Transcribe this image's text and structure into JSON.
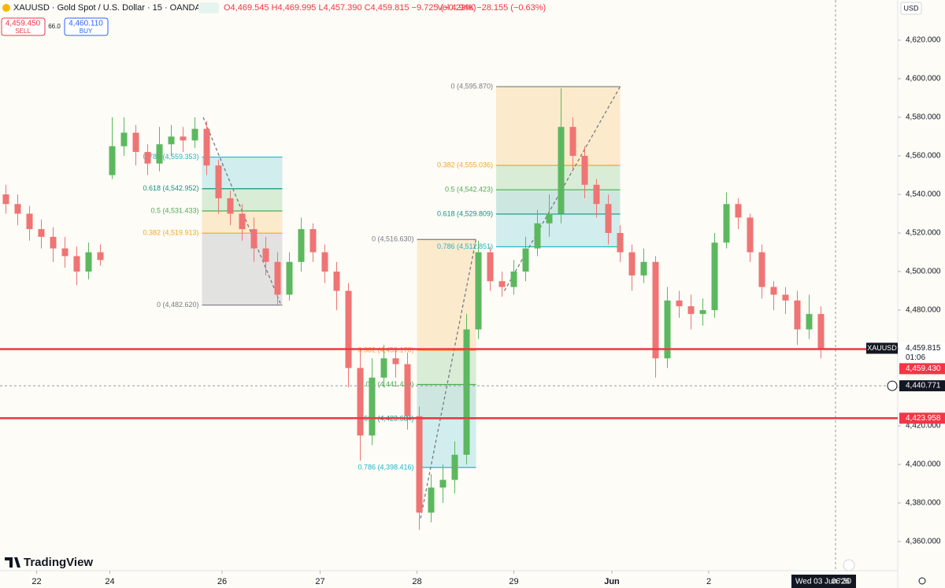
{
  "header": {
    "title": "XAUUSD · Gold Spot / U.S. Dollar · 15 · OANDA",
    "ohlc": "O4,469.545 H4,469.995 L4,457.390 C4,459.815 −9.725 (−0.22%)",
    "volume": "Vol 4.94K −28.155 (−0.63%)",
    "sell_price": "4,459.450",
    "sell": "SELL",
    "spread": "66.0",
    "buy_price": "4,460.110",
    "buy": "BUY",
    "currency": "USD"
  },
  "chart_data": {
    "type": "candlestick",
    "open": [
      4540,
      4535,
      4530,
      4522,
      4518,
      4512,
      4508,
      4500,
      4510,
      4550,
      4565,
      4572,
      4562,
      4556,
      4566,
      4570,
      4568,
      4574,
      4555,
      4538,
      4530,
      4522,
      4512,
      4505,
      4488,
      4505,
      4522,
      4510,
      4500,
      4490,
      4450,
      4415,
      4445,
      4455,
      4452,
      4425,
      4375,
      4388,
      4392,
      4405,
      4470,
      4510,
      4495,
      4492,
      4500,
      4512,
      4525,
      4530,
      4575,
      4560,
      4545,
      4535,
      4520,
      4510,
      4498,
      4505,
      4455,
      4485,
      4482,
      4478,
      4480,
      4515,
      4535,
      4528,
      4510,
      4492,
      4488,
      4485,
      4470,
      4478
    ],
    "high": [
      4545,
      4540,
      4534,
      4527,
      4523,
      4518,
      4513,
      4515,
      4514,
      4580,
      4580,
      4576,
      4566,
      4575,
      4576,
      4575,
      4580,
      4578,
      4558,
      4542,
      4535,
      4528,
      4518,
      4510,
      4510,
      4528,
      4525,
      4514,
      4505,
      4494,
      4460,
      4455,
      4462,
      4460,
      4458,
      4430,
      4395,
      4400,
      4412,
      4478,
      4516,
      4513,
      4500,
      4506,
      4518,
      4532,
      4540,
      4595,
      4580,
      4565,
      4548,
      4540,
      4524,
      4514,
      4512,
      4508,
      4492,
      4490,
      4488,
      4486,
      4520,
      4541,
      4538,
      4530,
      4514,
      4495,
      4492,
      4490,
      4488,
      4482
    ],
    "low": [
      4530,
      4524,
      4516,
      4512,
      4505,
      4502,
      4493,
      4496,
      4503,
      4548,
      4560,
      4555,
      4550,
      4552,
      4560,
      4562,
      4564,
      4550,
      4530,
      4524,
      4516,
      4505,
      4498,
      4483,
      4485,
      4500,
      4505,
      4494,
      4480,
      4440,
      4402,
      4410,
      4440,
      4445,
      4418,
      4366,
      4370,
      4380,
      4385,
      4400,
      4465,
      4490,
      4487,
      4488,
      4495,
      4508,
      4518,
      4525,
      4552,
      4538,
      4528,
      4514,
      4505,
      4490,
      4494,
      4445,
      4450,
      4476,
      4470,
      4472,
      4476,
      4512,
      4522,
      4505,
      4486,
      4480,
      4478,
      4462,
      4465,
      4455
    ],
    "close": [
      4535,
      4530,
      4522,
      4518,
      4512,
      4508,
      4500,
      4510,
      4506,
      4565,
      4572,
      4562,
      4556,
      4566,
      4570,
      4568,
      4574,
      4555,
      4538,
      4530,
      4522,
      4512,
      4505,
      4488,
      4505,
      4522,
      4510,
      4500,
      4490,
      4450,
      4415,
      4445,
      4455,
      4452,
      4425,
      4375,
      4388,
      4392,
      4405,
      4470,
      4510,
      4495,
      4492,
      4500,
      4512,
      4525,
      4530,
      4575,
      4560,
      4545,
      4535,
      4520,
      4510,
      4498,
      4505,
      4455,
      4485,
      4482,
      4478,
      4480,
      4515,
      4535,
      4528,
      4510,
      4492,
      4488,
      4485,
      4470,
      4478,
      4460
    ],
    "up_color": "#5cb85f",
    "down_color": "#ef7474",
    "xlim": [
      0,
      76
    ],
    "xticks": [
      {
        "value": 3.1,
        "label": "22"
      },
      {
        "value": 9.3,
        "label": "24"
      },
      {
        "value": 18.8,
        "label": "26"
      },
      {
        "value": 27.1,
        "label": "27"
      },
      {
        "value": 35.3,
        "label": "28"
      },
      {
        "value": 43.5,
        "label": "29"
      },
      {
        "value": 51.8,
        "label": "Jun"
      },
      {
        "value": 60,
        "label": "2"
      }
    ],
    "ylim": [
      4344.9,
      4640.8
    ],
    "yticks": [
      {
        "value": 4360,
        "label": "4,360.000"
      },
      {
        "value": 4380,
        "label": "4,380.000"
      },
      {
        "value": 4400,
        "label": "4,400.000"
      },
      {
        "value": 4420,
        "label": "4,420.000"
      },
      {
        "value": 4440,
        "label": "4,440.000"
      },
      {
        "value": 4460,
        "label": "4,460.000"
      },
      {
        "value": 4480,
        "label": "4,480.000"
      },
      {
        "value": 4500,
        "label": "4,500.000"
      },
      {
        "value": 4520,
        "label": "4,520.000"
      },
      {
        "value": 4540,
        "label": "4,540.000"
      },
      {
        "value": 4560,
        "label": "4,560.000"
      },
      {
        "value": 4580,
        "label": "4,580.000"
      },
      {
        "value": 4600,
        "label": "4,600.000"
      },
      {
        "value": 4620,
        "label": "4,620.000"
      }
    ],
    "fib_retracements": [
      {
        "start": 17.1,
        "end": 23.9,
        "trend_from": [
          17.2,
          4580
        ],
        "trend_to": [
          23.8,
          4482.6
        ],
        "levels": [
          {
            "value": 4559.353,
            "label": "0.786 (4,559.353)",
            "color": "#22b5c9"
          },
          {
            "value": 4542.952,
            "label": "0.618 (4,542.952)",
            "color": "#0f9485"
          },
          {
            "value": 4531.433,
            "label": "0.5 (4,531.433)",
            "color": "#4caf50"
          },
          {
            "value": 4519.913,
            "label": "0.382 (4,519.913)",
            "color": "#f5a623"
          },
          {
            "value": 4482.62,
            "label": "0 (4,482.620)",
            "color": "#787b86"
          }
        ]
      },
      {
        "start": 35.3,
        "end": 40.3,
        "trend_from": [
          35.6,
          4372
        ],
        "trend_to": [
          40.3,
          4516.63
        ],
        "levels": [
          {
            "value": 4516.63,
            "label": "0 (4,516.630)",
            "color": "#787b86"
          },
          {
            "value": 4459.178,
            "label": "0.382 (4,459.178)",
            "color": "#f5a623"
          },
          {
            "value": 4441.43,
            "label": "0.5 (4,441.430)",
            "color": "#4caf50"
          },
          {
            "value": 4423.684,
            "label": "0.618 (4,423.684)",
            "color": "#0f9485"
          },
          {
            "value": 4398.416,
            "label": "0.786 (4,398.416)",
            "color": "#22b5c9"
          }
        ]
      },
      {
        "start": 42,
        "end": 52.5,
        "trend_from": [
          42.7,
          4490
        ],
        "trend_to": [
          52.5,
          4595.87
        ],
        "levels": [
          {
            "value": 4595.87,
            "label": "0 (4,595.870)",
            "color": "#787b86"
          },
          {
            "value": 4555.036,
            "label": "0.382 (4,555.036)",
            "color": "#f5a623"
          },
          {
            "value": 4542.423,
            "label": "0.5 (4,542.423)",
            "color": "#4caf50"
          },
          {
            "value": 4529.809,
            "label": "0.618 (4,529.809)",
            "color": "#0f9485"
          },
          {
            "value": 4512.851,
            "label": "0.786 (4,512.851)",
            "color": "#22b5c9"
          }
        ]
      }
    ],
    "last_price": {
      "symbol": "XAUUSD",
      "value": 4459.815,
      "label": "4,459.815",
      "countdown": "01:06",
      "color": "#f23645"
    },
    "bid": {
      "value": 4459.43,
      "label": "4,459.430"
    },
    "cursor_line": {
      "value": 4440.771,
      "label": "4,440.771"
    },
    "horizontal_line": {
      "value": 4423.958,
      "label": "4,423.958",
      "color": "#f23645"
    },
    "cursor_time": "Wed 03 Jun '26",
    "cursor_clock": "06:30"
  },
  "footer": {
    "logo": "TradingView"
  }
}
